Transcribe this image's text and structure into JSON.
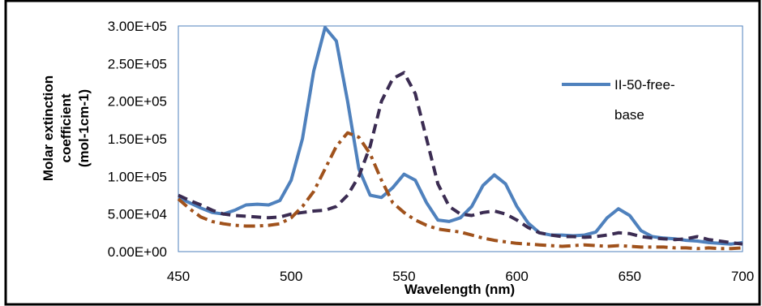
{
  "chart_data": {
    "type": "line",
    "title": "",
    "xlabel": "Wavelength (nm)",
    "ylabel_lines": [
      "Molar extinction",
      "coefficient",
      "(mol-1cm-1)"
    ],
    "xlim": [
      450,
      700
    ],
    "ylim": [
      0,
      300000
    ],
    "xticks": [
      "450",
      "500",
      "550",
      "600",
      "650",
      "700"
    ],
    "yticks": [
      "0.00E+00",
      "5.00E+04",
      "1.00E+05",
      "1.50E+05",
      "2.00E+05",
      "2.50E+05",
      "3.00E+05"
    ],
    "grid": false,
    "legend_position": "top-right",
    "colors": {
      "blue": "#4f81bd",
      "dark_purple": "#3b2c52",
      "brown": "#a0521c"
    },
    "series": [
      {
        "name": "II-50-free-base",
        "style": "solid",
        "color": "#4f81bd",
        "points": [
          [
            450,
            72000
          ],
          [
            455,
            65000
          ],
          [
            460,
            58000
          ],
          [
            465,
            52000
          ],
          [
            470,
            50000
          ],
          [
            475,
            55000
          ],
          [
            480,
            62000
          ],
          [
            485,
            63000
          ],
          [
            490,
            62000
          ],
          [
            495,
            68000
          ],
          [
            500,
            95000
          ],
          [
            505,
            150000
          ],
          [
            510,
            240000
          ],
          [
            515,
            298000
          ],
          [
            520,
            280000
          ],
          [
            525,
            200000
          ],
          [
            530,
            110000
          ],
          [
            535,
            75000
          ],
          [
            540,
            72000
          ],
          [
            545,
            85000
          ],
          [
            550,
            103000
          ],
          [
            555,
            95000
          ],
          [
            560,
            65000
          ],
          [
            565,
            42000
          ],
          [
            570,
            40000
          ],
          [
            575,
            45000
          ],
          [
            580,
            60000
          ],
          [
            585,
            88000
          ],
          [
            590,
            102000
          ],
          [
            595,
            90000
          ],
          [
            600,
            60000
          ],
          [
            605,
            38000
          ],
          [
            610,
            25000
          ],
          [
            615,
            22000
          ],
          [
            620,
            22000
          ],
          [
            625,
            21000
          ],
          [
            630,
            22000
          ],
          [
            635,
            26000
          ],
          [
            640,
            45000
          ],
          [
            645,
            57000
          ],
          [
            650,
            48000
          ],
          [
            655,
            28000
          ],
          [
            660,
            20000
          ],
          [
            665,
            18000
          ],
          [
            670,
            17000
          ],
          [
            675,
            15000
          ],
          [
            680,
            14000
          ],
          [
            685,
            12000
          ],
          [
            690,
            11000
          ],
          [
            695,
            10000
          ],
          [
            700,
            12000
          ]
        ]
      },
      {
        "style": "dash",
        "color": "#3b2c52",
        "points": [
          [
            450,
            75000
          ],
          [
            455,
            68000
          ],
          [
            460,
            62000
          ],
          [
            465,
            55000
          ],
          [
            470,
            50000
          ],
          [
            475,
            48000
          ],
          [
            480,
            47000
          ],
          [
            485,
            46000
          ],
          [
            490,
            45000
          ],
          [
            495,
            46000
          ],
          [
            500,
            50000
          ],
          [
            505,
            52000
          ],
          [
            510,
            54000
          ],
          [
            515,
            55000
          ],
          [
            520,
            60000
          ],
          [
            525,
            75000
          ],
          [
            530,
            100000
          ],
          [
            535,
            140000
          ],
          [
            540,
            200000
          ],
          [
            545,
            230000
          ],
          [
            550,
            238000
          ],
          [
            555,
            210000
          ],
          [
            560,
            150000
          ],
          [
            565,
            90000
          ],
          [
            570,
            60000
          ],
          [
            575,
            50000
          ],
          [
            580,
            48000
          ],
          [
            585,
            52000
          ],
          [
            590,
            54000
          ],
          [
            595,
            50000
          ],
          [
            600,
            42000
          ],
          [
            605,
            32000
          ],
          [
            610,
            25000
          ],
          [
            615,
            22000
          ],
          [
            620,
            20000
          ],
          [
            625,
            20000
          ],
          [
            630,
            19000
          ],
          [
            635,
            20000
          ],
          [
            640,
            22000
          ],
          [
            645,
            25000
          ],
          [
            650,
            24000
          ],
          [
            655,
            20000
          ],
          [
            660,
            18000
          ],
          [
            665,
            17000
          ],
          [
            670,
            16000
          ],
          [
            675,
            17000
          ],
          [
            680,
            20000
          ],
          [
            685,
            16000
          ],
          [
            690,
            14000
          ],
          [
            695,
            12000
          ],
          [
            700,
            10000
          ]
        ]
      },
      {
        "style": "dash-dot",
        "color": "#a0521c",
        "points": [
          [
            450,
            70000
          ],
          [
            455,
            57000
          ],
          [
            460,
            46000
          ],
          [
            465,
            40000
          ],
          [
            470,
            37000
          ],
          [
            475,
            35000
          ],
          [
            480,
            34000
          ],
          [
            485,
            34000
          ],
          [
            490,
            35000
          ],
          [
            495,
            37000
          ],
          [
            500,
            45000
          ],
          [
            505,
            60000
          ],
          [
            510,
            80000
          ],
          [
            515,
            110000
          ],
          [
            520,
            140000
          ],
          [
            525,
            158000
          ],
          [
            530,
            152000
          ],
          [
            535,
            130000
          ],
          [
            540,
            95000
          ],
          [
            545,
            65000
          ],
          [
            550,
            52000
          ],
          [
            555,
            42000
          ],
          [
            560,
            35000
          ],
          [
            565,
            30000
          ],
          [
            570,
            28000
          ],
          [
            575,
            26000
          ],
          [
            580,
            22000
          ],
          [
            585,
            18000
          ],
          [
            590,
            15000
          ],
          [
            595,
            13000
          ],
          [
            600,
            11000
          ],
          [
            605,
            10000
          ],
          [
            610,
            9000
          ],
          [
            615,
            8000
          ],
          [
            620,
            7000
          ],
          [
            625,
            8000
          ],
          [
            630,
            9000
          ],
          [
            635,
            8000
          ],
          [
            640,
            7000
          ],
          [
            645,
            8000
          ],
          [
            650,
            7000
          ],
          [
            655,
            6000
          ],
          [
            660,
            6000
          ],
          [
            665,
            6000
          ],
          [
            670,
            5000
          ],
          [
            675,
            5000
          ],
          [
            680,
            4000
          ],
          [
            685,
            5000
          ],
          [
            690,
            4000
          ],
          [
            695,
            4000
          ],
          [
            700,
            5000
          ]
        ]
      }
    ]
  }
}
